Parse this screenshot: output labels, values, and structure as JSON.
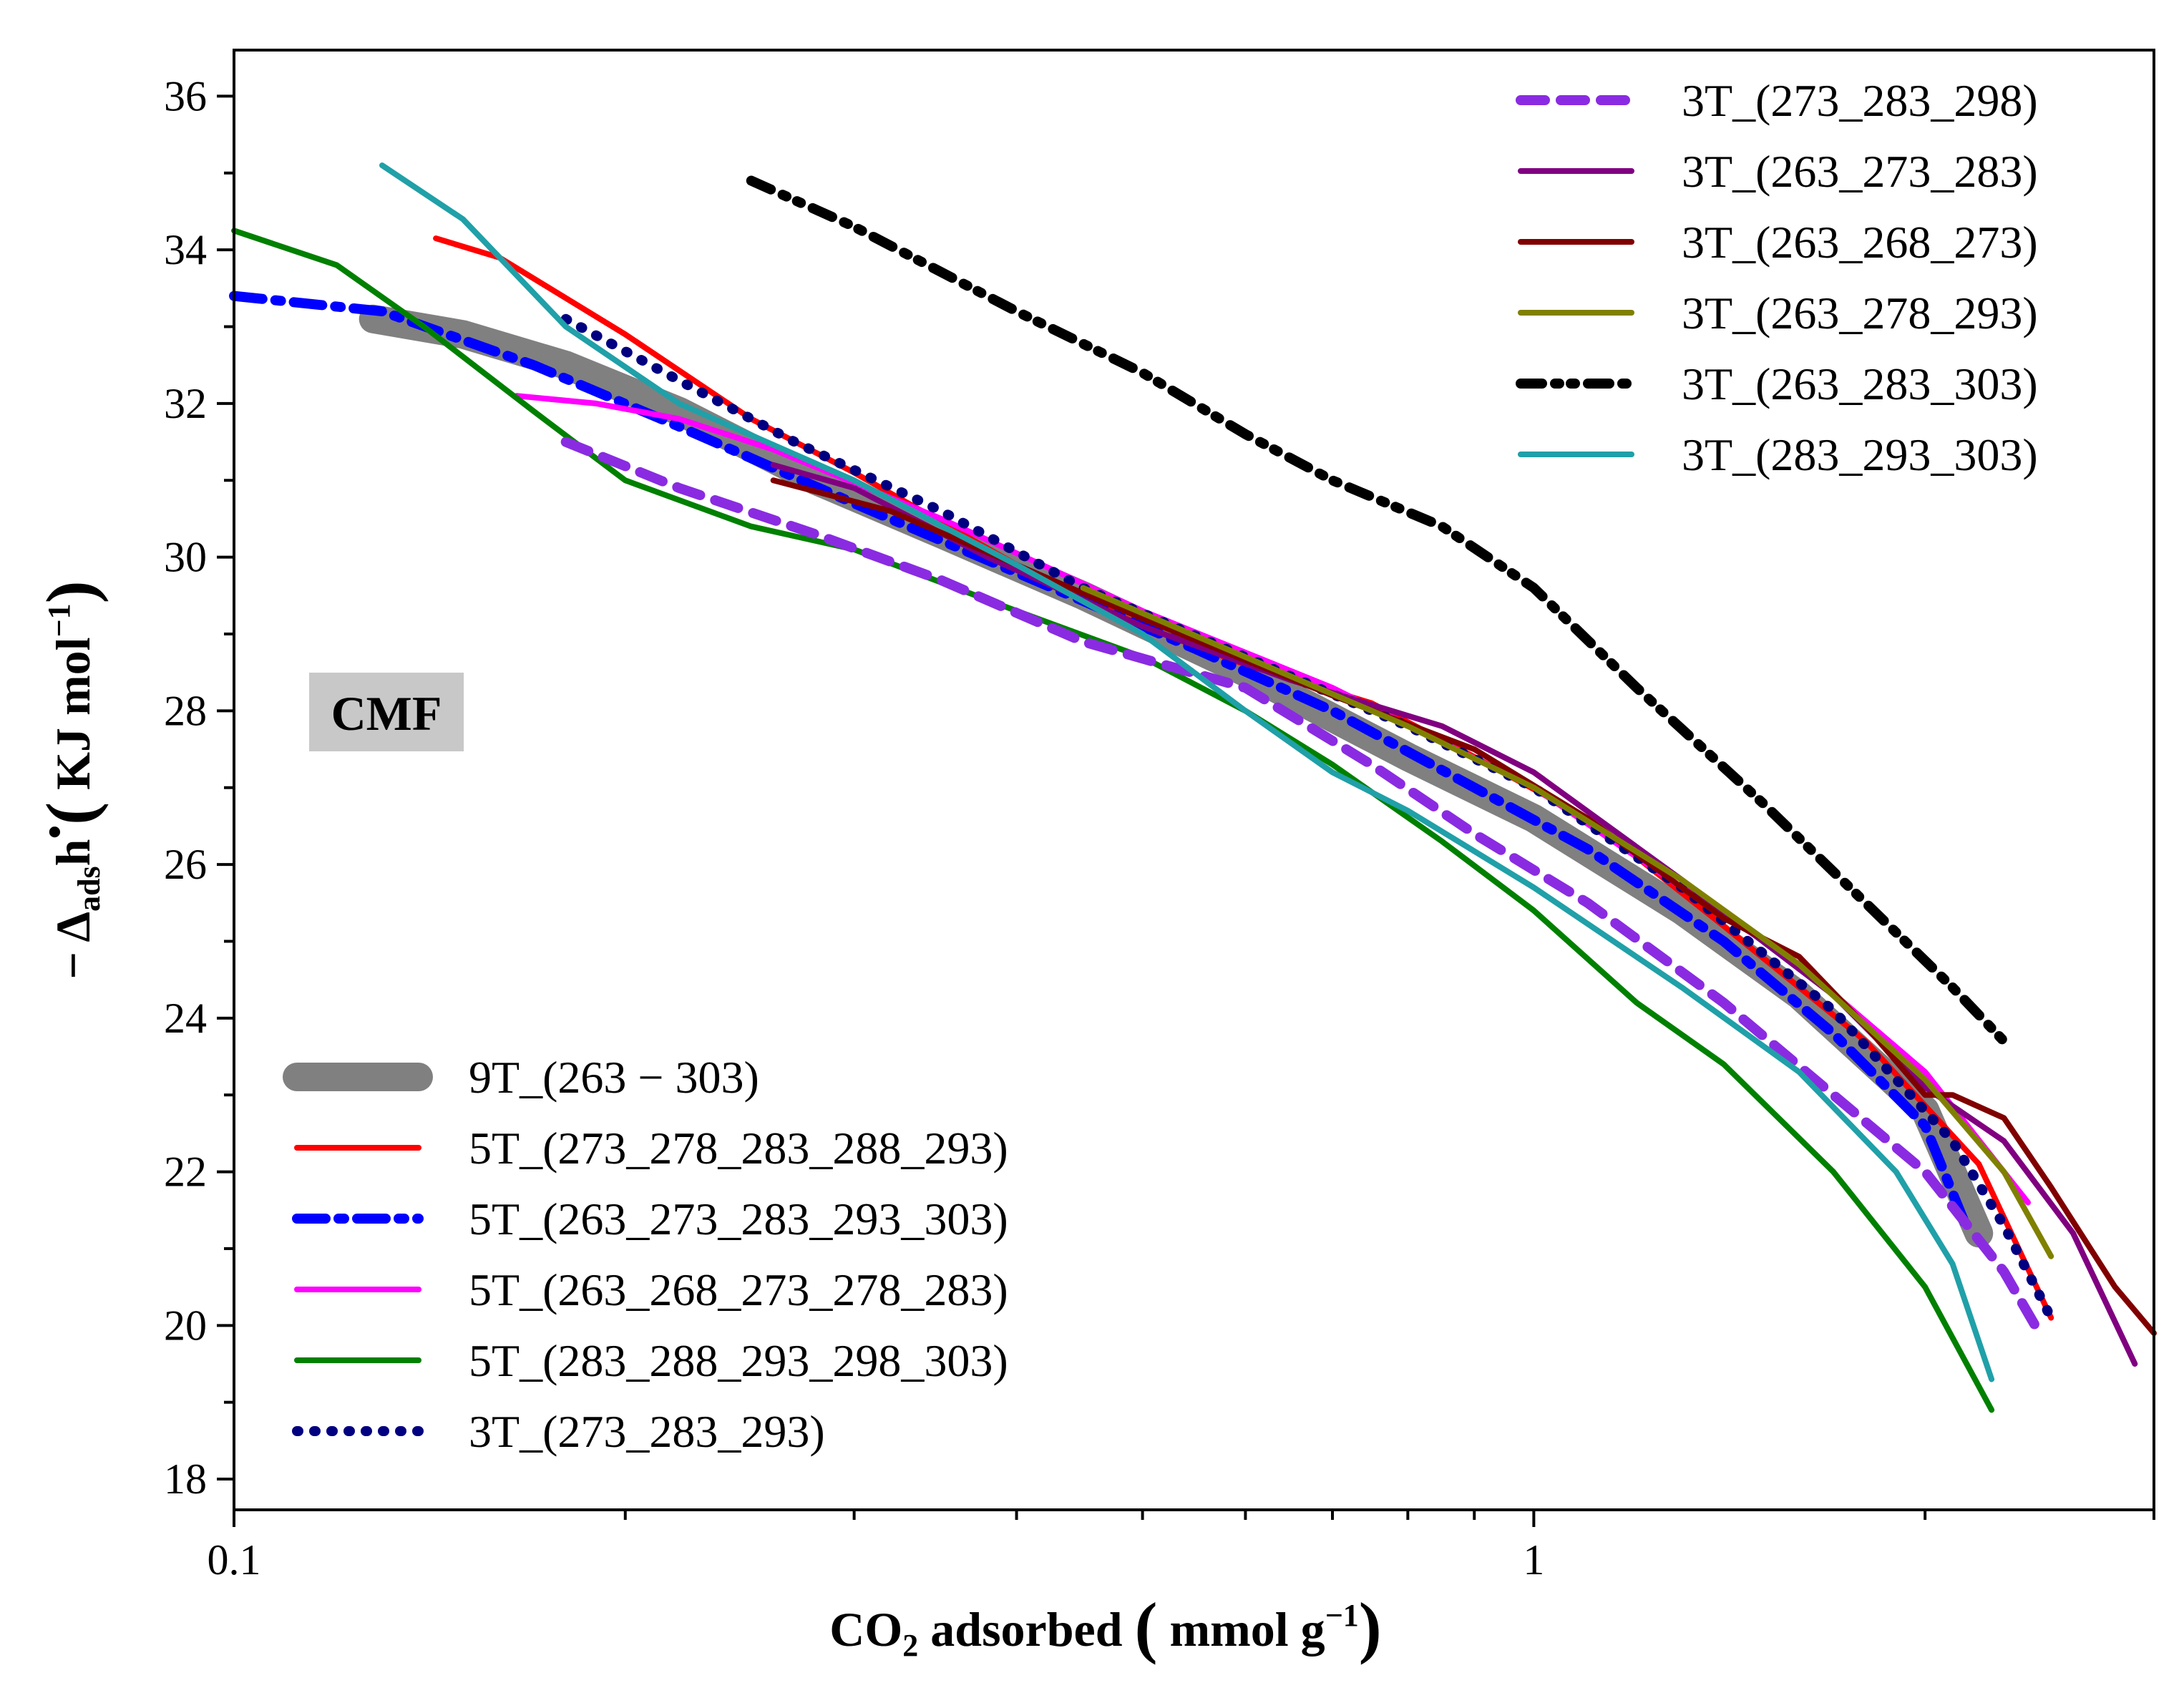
{
  "chart_data": {
    "type": "line",
    "xscale": "log",
    "xlim": [
      0.1,
      3.0
    ],
    "ylim": [
      17.6,
      36.6
    ],
    "x_ticks": [
      {
        "value": 0.1,
        "label": "0.1"
      },
      {
        "value": 1,
        "label": "1"
      }
    ],
    "y_ticks": [
      18,
      20,
      22,
      24,
      26,
      28,
      30,
      32,
      34,
      36
    ],
    "xlabel": {
      "main": "CO",
      "sub": "2",
      "rest": " adsorbed ",
      "unit_open": "(",
      "unit": " mmol g",
      "unit_sup": "−1",
      "unit_close": ")"
    },
    "ylabel": {
      "prefix": "− Δ",
      "sub": "ads",
      "main": "h",
      "dot": "•",
      "unit_open": "(",
      "unit": " KJ mol",
      "unit_sup": "−1",
      "unit_close": ")"
    },
    "annotation": "CMF",
    "grid": false,
    "legend_left_position": "bottom-left",
    "legend_right_position": "top-right",
    "series": [
      {
        "name": "9T_(263 − 303)",
        "color": "#808080",
        "style": "solid",
        "width": "thick",
        "legend": "left",
        "points": [
          [
            0.128,
            33.1
          ],
          [
            0.15,
            32.9
          ],
          [
            0.18,
            32.5
          ],
          [
            0.22,
            31.9
          ],
          [
            0.28,
            31.0
          ],
          [
            0.35,
            30.3
          ],
          [
            0.45,
            29.5
          ],
          [
            0.6,
            28.5
          ],
          [
            0.8,
            27.4
          ],
          [
            1.0,
            26.6
          ],
          [
            1.3,
            25.4
          ],
          [
            1.6,
            24.3
          ],
          [
            2.0,
            22.8
          ],
          [
            2.2,
            21.2
          ]
        ]
      },
      {
        "name": "5T_(273_278_283_288_293)",
        "color": "#ff0000",
        "style": "solid",
        "width": "normal",
        "legend": "left",
        "points": [
          [
            0.143,
            34.15
          ],
          [
            0.16,
            33.9
          ],
          [
            0.2,
            32.9
          ],
          [
            0.25,
            31.8
          ],
          [
            0.3,
            31.1
          ],
          [
            0.4,
            29.9
          ],
          [
            0.5,
            29.1
          ],
          [
            0.6,
            28.6
          ],
          [
            0.75,
            28.1
          ],
          [
            0.9,
            27.4
          ],
          [
            1.1,
            26.6
          ],
          [
            1.4,
            25.2
          ],
          [
            1.8,
            23.7
          ],
          [
            2.2,
            22.1
          ],
          [
            2.5,
            20.1
          ]
        ]
      },
      {
        "name": "5T_(263_273_283_293_303)",
        "color": "#0000ff",
        "style": "dashdot",
        "width": "thick",
        "legend": "left",
        "points": [
          [
            0.1,
            33.4
          ],
          [
            0.13,
            33.2
          ],
          [
            0.17,
            32.5
          ],
          [
            0.22,
            31.7
          ],
          [
            0.3,
            30.7
          ],
          [
            0.4,
            29.8
          ],
          [
            0.55,
            28.8
          ],
          [
            0.7,
            28.0
          ],
          [
            0.9,
            27.0
          ],
          [
            1.1,
            26.2
          ],
          [
            1.4,
            25.0
          ],
          [
            1.7,
            23.8
          ],
          [
            2.0,
            22.6
          ],
          [
            2.15,
            21.3
          ]
        ]
      },
      {
        "name": "5T_(263_268_273_278_283)",
        "color": "#ff00ff",
        "style": "solid",
        "width": "normal",
        "legend": "left",
        "points": [
          [
            0.165,
            32.1
          ],
          [
            0.19,
            32.0
          ],
          [
            0.22,
            31.8
          ],
          [
            0.26,
            31.4
          ],
          [
            0.35,
            30.5
          ],
          [
            0.5,
            29.3
          ],
          [
            0.7,
            28.3
          ],
          [
            1.0,
            27.0
          ],
          [
            1.3,
            25.7
          ],
          [
            1.6,
            24.7
          ],
          [
            2.0,
            23.3
          ],
          [
            2.4,
            21.6
          ]
        ]
      },
      {
        "name": "5T_(283_288_293_298_303)",
        "color": "#008000",
        "style": "solid",
        "width": "normal",
        "legend": "left",
        "points": [
          [
            0.1,
            34.25
          ],
          [
            0.12,
            33.8
          ],
          [
            0.14,
            33.0
          ],
          [
            0.17,
            31.9
          ],
          [
            0.2,
            31.0
          ],
          [
            0.25,
            30.4
          ],
          [
            0.3,
            30.1
          ],
          [
            0.4,
            29.3
          ],
          [
            0.5,
            28.7
          ],
          [
            0.6,
            28.0
          ],
          [
            0.7,
            27.3
          ],
          [
            0.85,
            26.3
          ],
          [
            1.0,
            25.4
          ],
          [
            1.2,
            24.2
          ],
          [
            1.4,
            23.4
          ],
          [
            1.7,
            22.0
          ],
          [
            2.0,
            20.5
          ],
          [
            2.25,
            18.9
          ]
        ]
      },
      {
        "name": "3T_(273_283_293)",
        "color": "#000080",
        "style": "dotted",
        "width": "thick",
        "legend": "left",
        "points": [
          [
            0.18,
            33.1
          ],
          [
            0.22,
            32.3
          ],
          [
            0.27,
            31.5
          ],
          [
            0.35,
            30.6
          ],
          [
            0.45,
            29.6
          ],
          [
            0.6,
            28.7
          ],
          [
            0.8,
            27.8
          ],
          [
            1.0,
            27.0
          ],
          [
            1.3,
            25.7
          ],
          [
            1.7,
            24.1
          ],
          [
            2.1,
            22.4
          ],
          [
            2.3,
            21.3
          ],
          [
            2.5,
            20.1
          ]
        ]
      },
      {
        "name": "3T_(273_283_298)",
        "color": "#8a2be2",
        "style": "dashed",
        "width": "thick",
        "legend": "right",
        "points": [
          [
            0.18,
            31.5
          ],
          [
            0.22,
            30.9
          ],
          [
            0.28,
            30.3
          ],
          [
            0.35,
            29.7
          ],
          [
            0.45,
            28.9
          ],
          [
            0.6,
            28.3
          ],
          [
            0.75,
            27.3
          ],
          [
            0.9,
            26.4
          ],
          [
            1.1,
            25.5
          ],
          [
            1.4,
            24.2
          ],
          [
            1.7,
            23.0
          ],
          [
            2.0,
            22.0
          ],
          [
            2.3,
            20.7
          ],
          [
            2.45,
            19.9
          ]
        ]
      },
      {
        "name": "3T_(263_273_283)",
        "color": "#800080",
        "style": "solid",
        "width": "normal",
        "legend": "right",
        "points": [
          [
            0.26,
            31.2
          ],
          [
            0.3,
            30.9
          ],
          [
            0.38,
            30.0
          ],
          [
            0.5,
            29.1
          ],
          [
            0.65,
            28.4
          ],
          [
            0.85,
            27.8
          ],
          [
            1.0,
            27.2
          ],
          [
            1.3,
            25.8
          ],
          [
            1.7,
            24.3
          ],
          [
            2.0,
            23.1
          ],
          [
            2.3,
            22.4
          ],
          [
            2.6,
            21.2
          ],
          [
            2.9,
            19.5
          ]
        ]
      },
      {
        "name": "3T_(263_268_273)",
        "color": "#800000",
        "style": "solid",
        "width": "normal",
        "legend": "right",
        "points": [
          [
            0.26,
            31.0
          ],
          [
            0.32,
            30.6
          ],
          [
            0.4,
            29.9
          ],
          [
            0.5,
            29.2
          ],
          [
            0.7,
            28.2
          ],
          [
            0.9,
            27.5
          ],
          [
            1.1,
            26.6
          ],
          [
            1.4,
            25.3
          ],
          [
            1.6,
            24.8
          ],
          [
            1.8,
            23.9
          ],
          [
            2.0,
            23.0
          ],
          [
            2.1,
            23.0
          ],
          [
            2.3,
            22.7
          ],
          [
            2.5,
            21.8
          ],
          [
            2.8,
            20.5
          ],
          [
            3.0,
            19.9
          ]
        ]
      },
      {
        "name": "3T_(263_278_293)",
        "color": "#808000",
        "style": "solid",
        "width": "normal",
        "legend": "right",
        "points": [
          [
            0.45,
            29.6
          ],
          [
            0.6,
            28.7
          ],
          [
            0.8,
            27.8
          ],
          [
            1.0,
            27.0
          ],
          [
            1.3,
            25.8
          ],
          [
            1.6,
            24.7
          ],
          [
            2.0,
            23.2
          ],
          [
            2.3,
            22.0
          ],
          [
            2.5,
            20.9
          ]
        ]
      },
      {
        "name": "3T_(263_283_303)",
        "color": "#000000",
        "style": "dashdotdot",
        "width": "thick",
        "legend": "right",
        "points": [
          [
            0.25,
            34.9
          ],
          [
            0.3,
            34.3
          ],
          [
            0.4,
            33.2
          ],
          [
            0.5,
            32.4
          ],
          [
            0.6,
            31.6
          ],
          [
            0.7,
            31.0
          ],
          [
            0.85,
            30.4
          ],
          [
            1.0,
            29.6
          ],
          [
            1.2,
            28.3
          ],
          [
            1.5,
            26.8
          ],
          [
            1.8,
            25.5
          ],
          [
            2.1,
            24.4
          ],
          [
            2.3,
            23.7
          ]
        ]
      },
      {
        "name": "3T_(283_293_303)",
        "color": "#20a0a8",
        "style": "solid",
        "width": "normal",
        "legend": "right",
        "points": [
          [
            0.13,
            35.1
          ],
          [
            0.15,
            34.4
          ],
          [
            0.18,
            33.0
          ],
          [
            0.22,
            32.0
          ],
          [
            0.3,
            31.0
          ],
          [
            0.4,
            29.9
          ],
          [
            0.5,
            29.0
          ],
          [
            0.6,
            28.0
          ],
          [
            0.7,
            27.2
          ],
          [
            0.8,
            26.7
          ],
          [
            1.0,
            25.7
          ],
          [
            1.3,
            24.4
          ],
          [
            1.6,
            23.3
          ],
          [
            1.9,
            22.0
          ],
          [
            2.1,
            20.8
          ],
          [
            2.25,
            19.3
          ]
        ]
      }
    ]
  }
}
